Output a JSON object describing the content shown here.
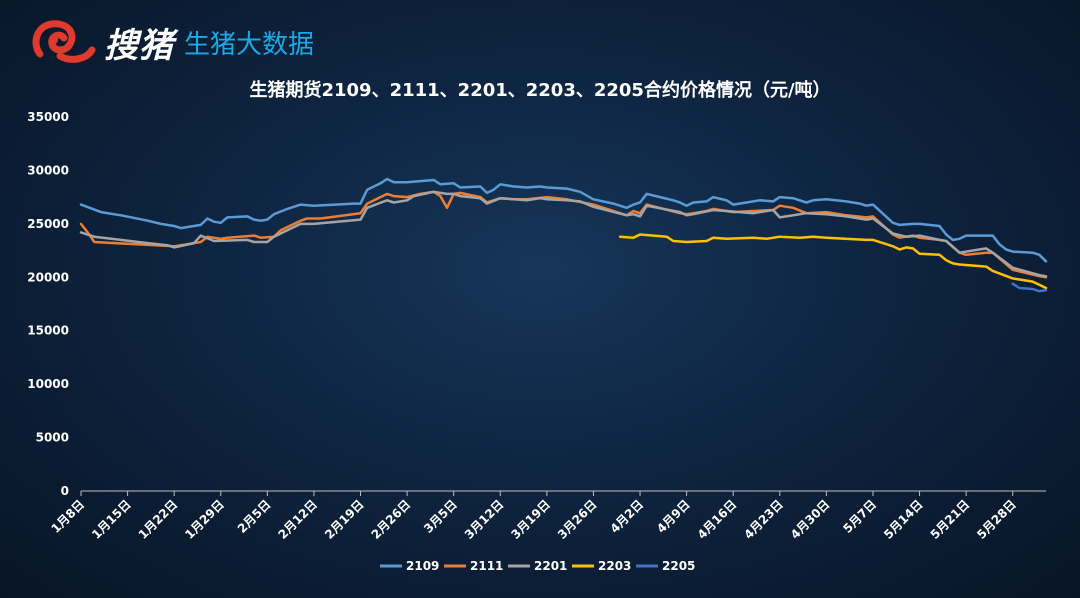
{
  "brand": {
    "name": "搜猪",
    "subtitle": "生猪大数据",
    "colors": {
      "red": "#e03a2f",
      "blue": "#19a9e6"
    },
    "icon": "pig-logo-icon"
  },
  "chart_data": {
    "type": "line",
    "title": "生猪期货2109、2111、2201、2203、2205合约价格情况（元/吨）",
    "xlabel": "",
    "ylabel": "",
    "ylim": [
      0,
      35000
    ],
    "yticks": [
      0,
      5000,
      10000,
      15000,
      20000,
      25000,
      30000,
      35000
    ],
    "x_start": "1月8日",
    "x_end": "6月2日",
    "xticks": [
      "1月8日",
      "1月15日",
      "1月22日",
      "1月29日",
      "2月5日",
      "2月12日",
      "2月19日",
      "2月26日",
      "3月5日",
      "3月12日",
      "3月19日",
      "3月26日",
      "4月2日",
      "4月9日",
      "4月16日",
      "4月23日",
      "4月30日",
      "5月7日",
      "5月14日",
      "5月21日",
      "5月28日"
    ],
    "grid": false,
    "legend_position": "bottom",
    "series": [
      {
        "name": "2109",
        "color": "#5b9bd5",
        "points": [
          [
            "1月8日",
            26800
          ],
          [
            "1月11日",
            26100
          ],
          [
            "1月14日",
            25800
          ],
          [
            "1月18日",
            25300
          ],
          [
            "1月20日",
            25000
          ],
          [
            "1月22日",
            24800
          ],
          [
            "1月23日",
            24600
          ],
          [
            "1月26日",
            24900
          ],
          [
            "1月27日",
            25500
          ],
          [
            "1月28日",
            25200
          ],
          [
            "1月29日",
            25100
          ],
          [
            "1月30日",
            25600
          ],
          [
            "2月2日",
            25700
          ],
          [
            "2月3日",
            25400
          ],
          [
            "2月4日",
            25300
          ],
          [
            "2月5日",
            25400
          ],
          [
            "2月6日",
            25900
          ],
          [
            "2月8日",
            26400
          ],
          [
            "2月10日",
            26800
          ],
          [
            "2月12日",
            26700
          ],
          [
            "2月18日",
            26900
          ],
          [
            "2月19日",
            26900
          ],
          [
            "2月20日",
            28200
          ],
          [
            "2月22日",
            28800
          ],
          [
            "2月23日",
            29200
          ],
          [
            "2月24日",
            28900
          ],
          [
            "2月26日",
            28900
          ],
          [
            "2月28日",
            29000
          ],
          [
            "3月2日",
            29100
          ],
          [
            "3月3日",
            28700
          ],
          [
            "3月5日",
            28800
          ],
          [
            "3月6日",
            28400
          ],
          [
            "3月9日",
            28500
          ],
          [
            "3月10日",
            27900
          ],
          [
            "3月11日",
            28200
          ],
          [
            "3月12日",
            28700
          ],
          [
            "3月14日",
            28500
          ],
          [
            "3月16日",
            28400
          ],
          [
            "3月18日",
            28500
          ],
          [
            "3月19日",
            28400
          ],
          [
            "3月22日",
            28300
          ],
          [
            "3月24日",
            28000
          ],
          [
            "3月26日",
            27300
          ],
          [
            "3月29日",
            26900
          ],
          [
            "3月31日",
            26500
          ],
          [
            "4月1日",
            26800
          ],
          [
            "4月2日",
            27000
          ],
          [
            "4月3日",
            27800
          ],
          [
            "4月5日",
            27500
          ],
          [
            "4月7日",
            27200
          ],
          [
            "4月8日",
            27000
          ],
          [
            "4月9日",
            26700
          ],
          [
            "4月10日",
            27000
          ],
          [
            "4月12日",
            27100
          ],
          [
            "4月13日",
            27500
          ],
          [
            "4月15日",
            27200
          ],
          [
            "4月16日",
            26800
          ],
          [
            "4月19日",
            27100
          ],
          [
            "4月20日",
            27200
          ],
          [
            "4月22日",
            27100
          ],
          [
            "4月23日",
            27500
          ],
          [
            "4月25日",
            27400
          ],
          [
            "4月27日",
            27000
          ],
          [
            "4月28日",
            27200
          ],
          [
            "4月30日",
            27300
          ],
          [
            "5月3日",
            27100
          ],
          [
            "5月5日",
            26900
          ],
          [
            "5月6日",
            26700
          ],
          [
            "5月7日",
            26800
          ],
          [
            "5月10日",
            25100
          ],
          [
            "5月11日",
            24900
          ],
          [
            "5月13日",
            25000
          ],
          [
            "5月14日",
            25000
          ],
          [
            "5月17日",
            24800
          ],
          [
            "5月18日",
            24000
          ],
          [
            "5月19日",
            23500
          ],
          [
            "5月20日",
            23600
          ],
          [
            "5月21日",
            23900
          ],
          [
            "5月25日",
            23900
          ],
          [
            "5月26日",
            23100
          ],
          [
            "5月27日",
            22600
          ],
          [
            "5月28日",
            22400
          ],
          [
            "5月31日",
            22300
          ],
          [
            "6月1日",
            22100
          ],
          [
            "6月2日",
            21500
          ]
        ]
      },
      {
        "name": "2111",
        "color": "#ed7d31",
        "points": [
          [
            "1月8日",
            25000
          ],
          [
            "1月9日",
            24200
          ],
          [
            "1月10日",
            23300
          ],
          [
            "1月22日",
            22900
          ],
          [
            "1月26日",
            23300
          ],
          [
            "1月27日",
            23800
          ],
          [
            "1月29日",
            23600
          ],
          [
            "1月30日",
            23700
          ],
          [
            "2月3日",
            23900
          ],
          [
            "2月4日",
            23700
          ],
          [
            "2月6日",
            23800
          ],
          [
            "2月7日",
            24400
          ],
          [
            "2月10日",
            25300
          ],
          [
            "2月11日",
            25500
          ],
          [
            "2月13日",
            25500
          ],
          [
            "2月19日",
            26000
          ],
          [
            "2月20日",
            26900
          ],
          [
            "2月23日",
            27800
          ],
          [
            "2月24日",
            27600
          ],
          [
            "2月26日",
            27500
          ],
          [
            "2月28日",
            27800
          ],
          [
            "3月2日",
            28000
          ],
          [
            "3月3日",
            27600
          ],
          [
            "3月4日",
            26500
          ],
          [
            "3月5日",
            27800
          ],
          [
            "3月6日",
            27900
          ],
          [
            "3月9日",
            27500
          ],
          [
            "3月10日",
            27000
          ],
          [
            "3月12日",
            27400
          ],
          [
            "3月14日",
            27300
          ],
          [
            "3月16日",
            27300
          ],
          [
            "3月19日",
            27500
          ],
          [
            "3月22日",
            27300
          ],
          [
            "3月26日",
            26800
          ],
          [
            "3月31日",
            25800
          ],
          [
            "4月1日",
            26200
          ],
          [
            "4月2日",
            26000
          ],
          [
            "4月3日",
            26800
          ],
          [
            "4月8日",
            26000
          ],
          [
            "4月9日",
            25900
          ],
          [
            "4月10日",
            26000
          ],
          [
            "4月12日",
            26200
          ],
          [
            "4月13日",
            26400
          ],
          [
            "4月16日",
            26100
          ],
          [
            "4月19日",
            26200
          ],
          [
            "4月22日",
            26300
          ],
          [
            "4月23日",
            26700
          ],
          [
            "4月25日",
            26500
          ],
          [
            "4月27日",
            26000
          ],
          [
            "4月30日",
            26100
          ],
          [
            "5月3日",
            25800
          ],
          [
            "5月6日",
            25600
          ],
          [
            "5月7日",
            25700
          ],
          [
            "5月10日",
            24000
          ],
          [
            "5月11日",
            23700
          ],
          [
            "5月13日",
            23900
          ],
          [
            "5月14日",
            23700
          ],
          [
            "5月17日",
            23500
          ],
          [
            "5月18日",
            23400
          ],
          [
            "5月20日",
            22300
          ],
          [
            "5月21日",
            22100
          ],
          [
            "5月24日",
            22300
          ],
          [
            "5月25日",
            22300
          ],
          [
            "5月28日",
            20700
          ],
          [
            "6月1日",
            20100
          ],
          [
            "6月2日",
            20000
          ]
        ]
      },
      {
        "name": "2201",
        "color": "#a5a5a5",
        "points": [
          [
            "1月8日",
            24200
          ],
          [
            "1月10日",
            23800
          ],
          [
            "1月18日",
            23200
          ],
          [
            "1月21日",
            23000
          ],
          [
            "1月22日",
            22800
          ],
          [
            "1月25日",
            23200
          ],
          [
            "1月26日",
            23900
          ],
          [
            "1月28日",
            23400
          ],
          [
            "2月2日",
            23500
          ],
          [
            "2月3日",
            23300
          ],
          [
            "2月5日",
            23300
          ],
          [
            "2月6日",
            23800
          ],
          [
            "2月8日",
            24400
          ],
          [
            "2月10日",
            25000
          ],
          [
            "2月12日",
            25000
          ],
          [
            "2月19日",
            25400
          ],
          [
            "2月20日",
            26500
          ],
          [
            "2月23日",
            27200
          ],
          [
            "2月24日",
            27000
          ],
          [
            "2月26日",
            27200
          ],
          [
            "2月27日",
            27600
          ],
          [
            "3月2日",
            28000
          ],
          [
            "3月4日",
            27800
          ],
          [
            "3月5日",
            27800
          ],
          [
            "3月6日",
            27600
          ],
          [
            "3月9日",
            27400
          ],
          [
            "3月10日",
            26900
          ],
          [
            "3月12日",
            27400
          ],
          [
            "3月14日",
            27300
          ],
          [
            "3月16日",
            27200
          ],
          [
            "3月18日",
            27400
          ],
          [
            "3月19日",
            27300
          ],
          [
            "3月22日",
            27200
          ],
          [
            "3月24日",
            27100
          ],
          [
            "3月26日",
            26600
          ],
          [
            "3月31日",
            25800
          ],
          [
            "4月1日",
            25900
          ],
          [
            "4月2日",
            25700
          ],
          [
            "4月3日",
            26700
          ],
          [
            "4月8日",
            26100
          ],
          [
            "4月9日",
            25800
          ],
          [
            "4月10日",
            25900
          ],
          [
            "4月13日",
            26300
          ],
          [
            "4月15日",
            26200
          ],
          [
            "4月19日",
            26000
          ],
          [
            "4月22日",
            26300
          ],
          [
            "4月23日",
            25600
          ],
          [
            "4月27日",
            26000
          ],
          [
            "4月30日",
            25900
          ],
          [
            "5月3日",
            25700
          ],
          [
            "5月6日",
            25400
          ],
          [
            "5月7日",
            25500
          ],
          [
            "5月10日",
            24100
          ],
          [
            "5月12日",
            23800
          ],
          [
            "5月14日",
            23900
          ],
          [
            "5月17日",
            23500
          ],
          [
            "5月18日",
            23400
          ],
          [
            "5月20日",
            22300
          ],
          [
            "5月24日",
            22700
          ],
          [
            "5月25日",
            22300
          ],
          [
            "5月28日",
            20900
          ],
          [
            "6月1日",
            20200
          ],
          [
            "6月2日",
            20100
          ]
        ]
      },
      {
        "name": "2203",
        "color": "#ffc000",
        "points": [
          [
            "3月30日",
            23800
          ],
          [
            "4月1日",
            23700
          ],
          [
            "4月2日",
            24000
          ],
          [
            "4月6日",
            23800
          ],
          [
            "4月7日",
            23400
          ],
          [
            "4月9日",
            23300
          ],
          [
            "4月12日",
            23400
          ],
          [
            "4月13日",
            23700
          ],
          [
            "4月15日",
            23600
          ],
          [
            "4月19日",
            23700
          ],
          [
            "4月21日",
            23600
          ],
          [
            "4月23日",
            23800
          ],
          [
            "4月26日",
            23700
          ],
          [
            "4月28日",
            23800
          ],
          [
            "4月30日",
            23700
          ],
          [
            "5月6日",
            23500
          ],
          [
            "5月7日",
            23500
          ],
          [
            "5月10日",
            22900
          ],
          [
            "5月11日",
            22600
          ],
          [
            "5月12日",
            22800
          ],
          [
            "5月13日",
            22700
          ],
          [
            "5月14日",
            22200
          ],
          [
            "5月17日",
            22100
          ],
          [
            "5月18日",
            21600
          ],
          [
            "5月19日",
            21300
          ],
          [
            "5月20日",
            21200
          ],
          [
            "5月24日",
            21000
          ],
          [
            "5月25日",
            20600
          ],
          [
            "5月28日",
            19900
          ],
          [
            "5月31日",
            19600
          ],
          [
            "6月1日",
            19300
          ],
          [
            "6月2日",
            19000
          ]
        ]
      },
      {
        "name": "2205",
        "color": "#4472c4",
        "points": [
          [
            "5月28日",
            19400
          ],
          [
            "5月29日",
            19000
          ],
          [
            "5月31日",
            18900
          ],
          [
            "6月1日",
            18700
          ],
          [
            "6月2日",
            18800
          ]
        ]
      }
    ]
  }
}
